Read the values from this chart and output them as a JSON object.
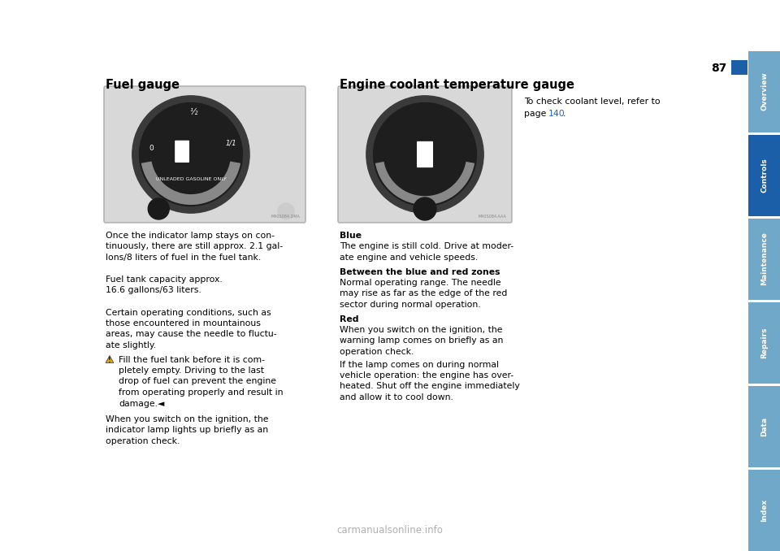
{
  "page_bg": "#ffffff",
  "page_number": "87",
  "heading1": "Fuel gauge",
  "heading2": "Engine coolant temperature gauge",
  "blue_tab_color": "#1a5fa8",
  "sidebar_tabs": [
    {
      "label": "Overview",
      "color": "#6fa8c8"
    },
    {
      "label": "Controls",
      "color": "#1a5fa8"
    },
    {
      "label": "Maintenance",
      "color": "#6fa8c8"
    },
    {
      "label": "Repairs",
      "color": "#6fa8c8"
    },
    {
      "label": "Data",
      "color": "#6fa8c8"
    },
    {
      "label": "Index",
      "color": "#6fa8c8"
    }
  ],
  "body_text_col1": [
    "Once the indicator lamp stays on con-",
    "tinuously, there are still approx. 2.1 gal-",
    "lons/8 liters of fuel in the fuel tank.",
    "Fuel tank capacity approx.",
    "16.6 gallons/63 liters.",
    "Certain operating conditions, such as",
    "those encountered in mountainous",
    "areas, may cause the needle to fluctu-",
    "ate slightly."
  ],
  "warning_text": [
    "Fill the fuel tank before it is com-",
    "pletely empty. Driving to the last",
    "drop of fuel can prevent the engine",
    "from operating properly and result in",
    "damage.◄"
  ],
  "body_text_col1_bottom": [
    "When you switch on the ignition, the",
    "indicator lamp lights up briefly as an",
    "operation check."
  ],
  "body_text_col2_heading1": "Blue",
  "body_text_col2_para1": [
    "The engine is still cold. Drive at moder-",
    "ate engine and vehicle speeds."
  ],
  "body_text_col2_heading2": "Between the blue and red zones",
  "body_text_col2_para2": [
    "Normal operating range. The needle",
    "may rise as far as the edge of the red",
    "sector during normal operation."
  ],
  "body_text_col2_heading3": "Red",
  "body_text_col2_para3": [
    "When you switch on the ignition, the",
    "warning lamp comes on briefly as an",
    "operation check.",
    "If the lamp comes on during normal",
    "vehicle operation: the engine has over-",
    "heated. Shut off the engine immediately",
    "and allow it to cool down."
  ],
  "coolant_note_line1": "To check coolant level, refer to",
  "coolant_note_line2": "page ",
  "coolant_note_page": "140",
  "coolant_note_suffix": ".",
  "font_size_heading": 10.5,
  "font_size_body": 7.8,
  "font_size_page_num": 10,
  "watermark": "carmanualsonline.info"
}
